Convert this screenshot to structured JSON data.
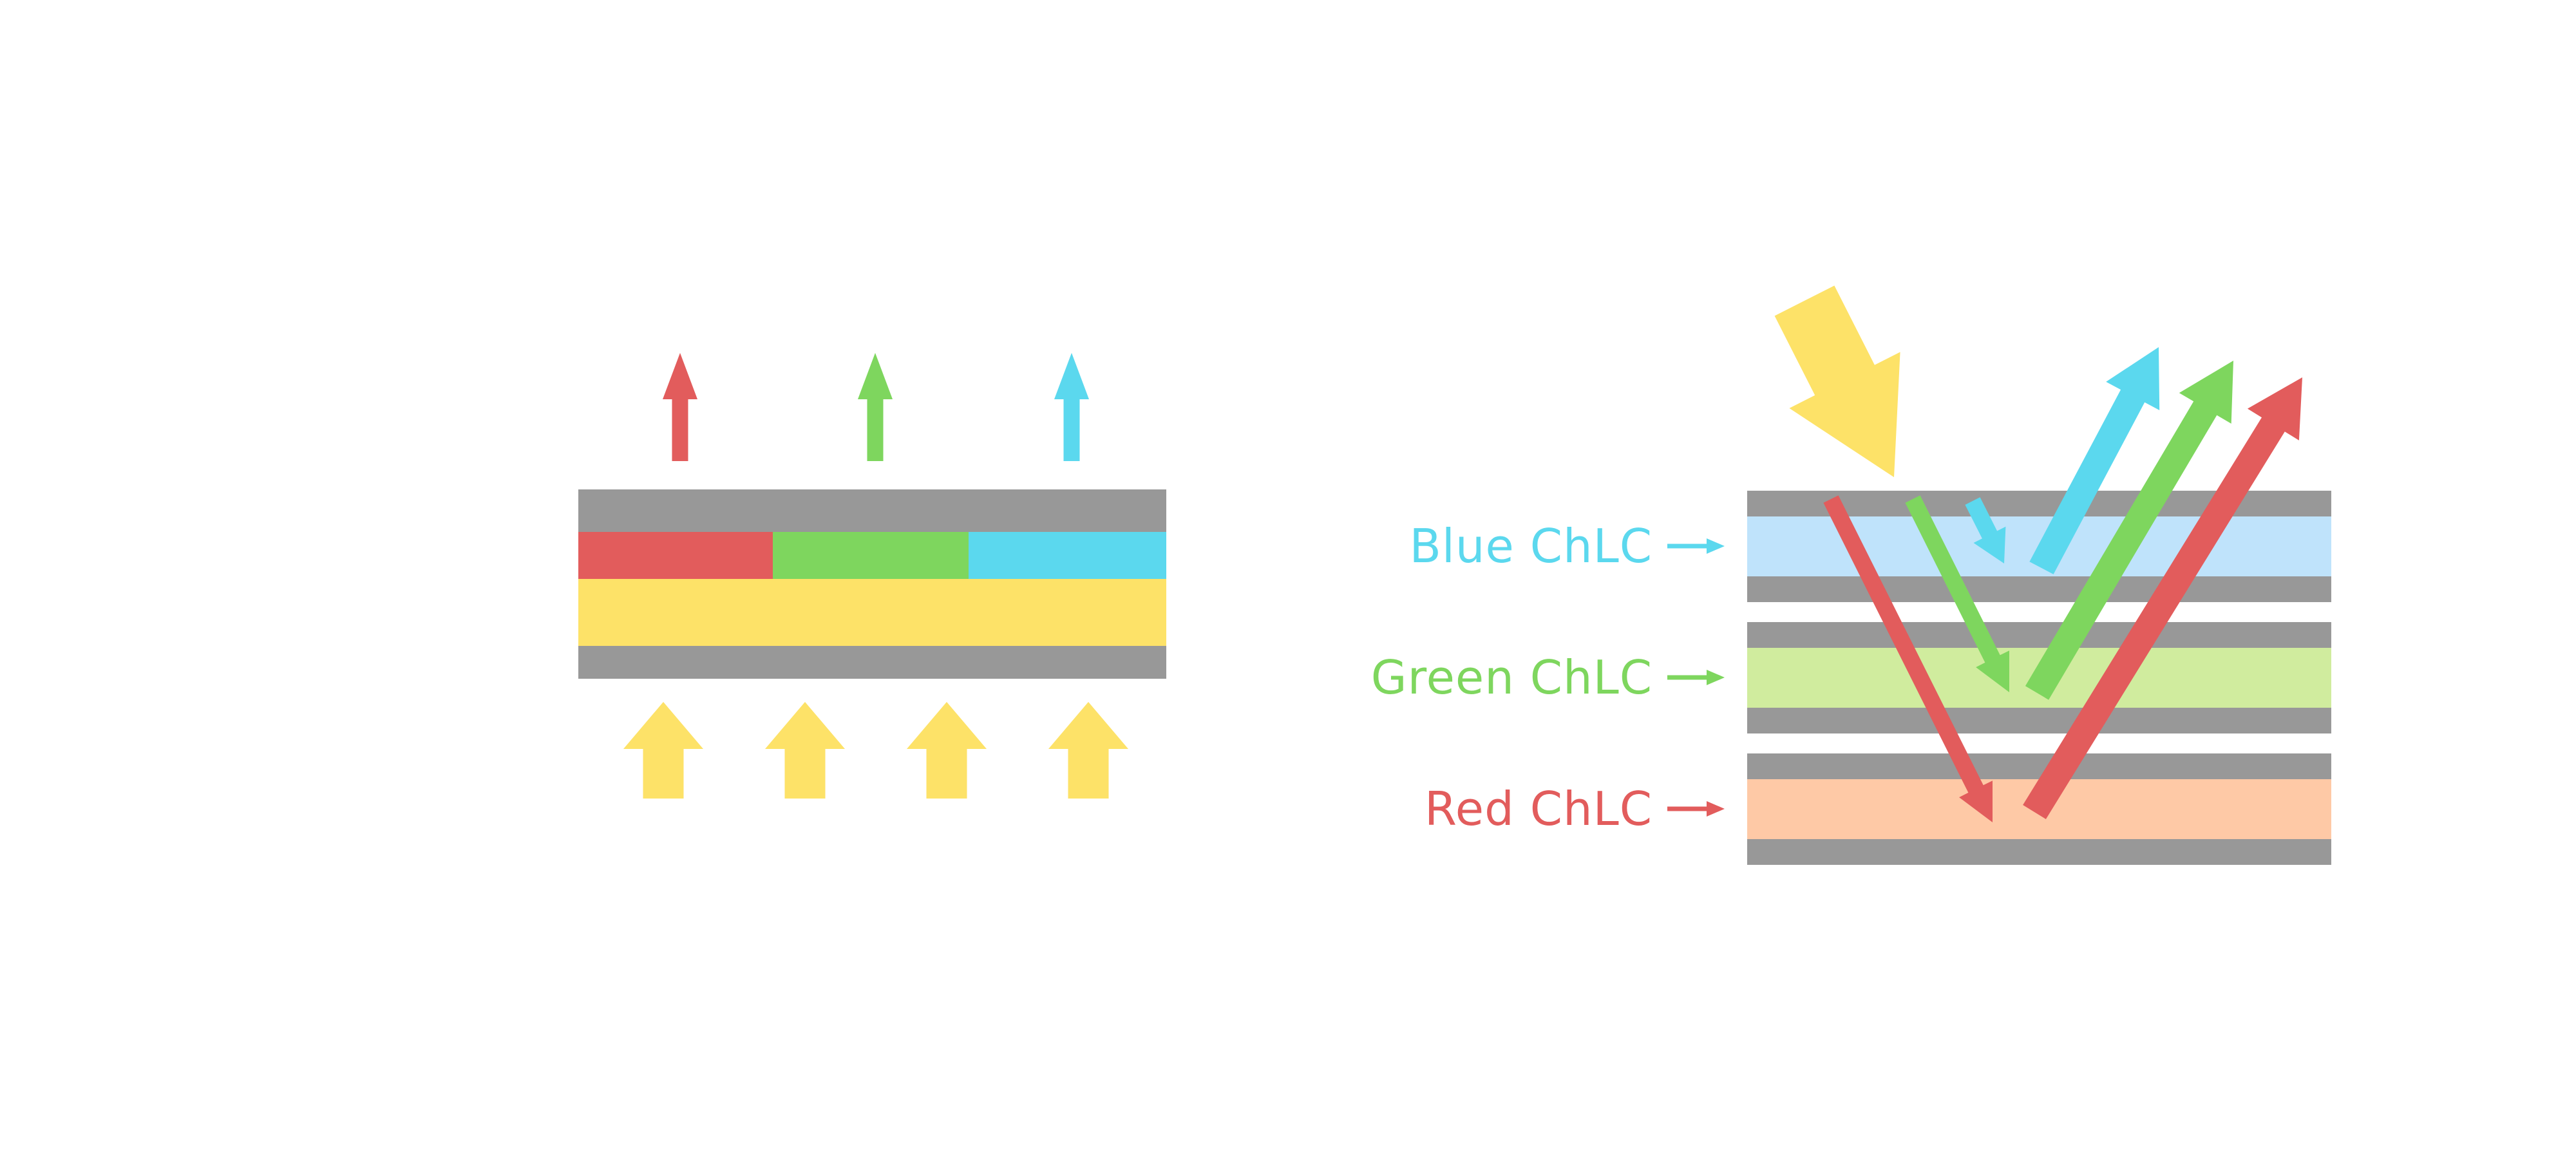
{
  "colors": {
    "red": "#e25c5c",
    "green": "#7ed65e",
    "cyan": "#5bd8ee",
    "yellow": "#fde268",
    "gray": "#989898",
    "light_blue": "#bfe3fb",
    "light_green": "#d0ec9e",
    "light_orange": "#fec9a6",
    "background": "#ffffff"
  },
  "right_diagram": {
    "labels": [
      {
        "text": "Blue ChLC",
        "color": "#5bd8ee"
      },
      {
        "text": "Green ChLC",
        "color": "#7ed65e"
      },
      {
        "text": "Red ChLC",
        "color": "#e25c5c"
      }
    ]
  }
}
